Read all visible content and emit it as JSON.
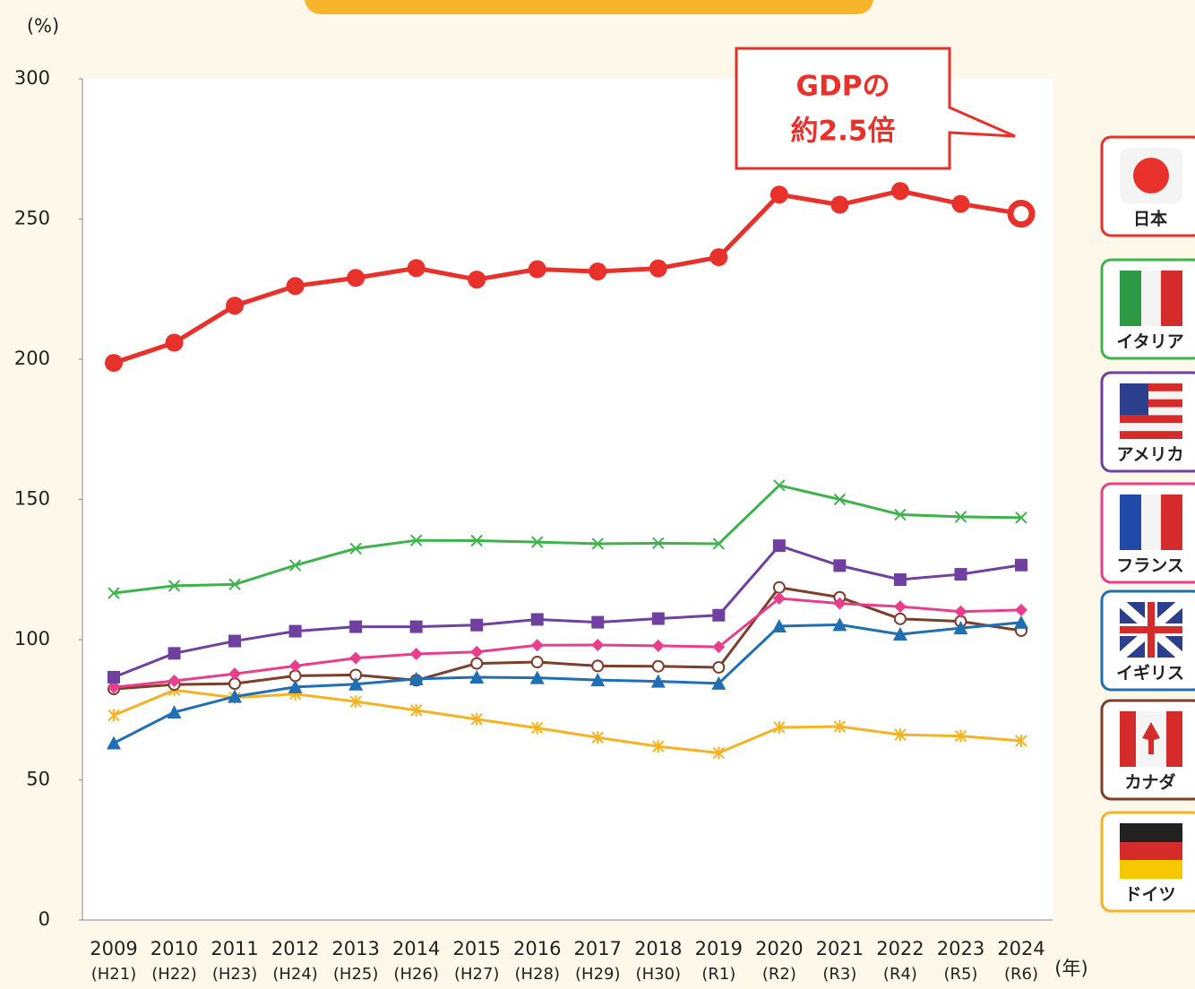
{
  "chart_data": {
    "type": "line",
    "y_axis_label": "(%)",
    "x_axis_label": "(年)",
    "annotation": [
      "GDPの",
      "約2.5倍"
    ],
    "categories": [
      "2009",
      "2010",
      "2011",
      "2012",
      "2013",
      "2014",
      "2015",
      "2016",
      "2017",
      "2018",
      "2019",
      "2020",
      "2021",
      "2022",
      "2023",
      "2024"
    ],
    "era_labels": [
      "(H21)",
      "(H22)",
      "(H23)",
      "(H24)",
      "(H25)",
      "(H26)",
      "(H27)",
      "(H28)",
      "(H29)",
      "(H30)",
      "(R1)",
      "(R2)",
      "(R3)",
      "(R4)",
      "(R5)",
      "(R6)"
    ],
    "ylim": [
      0,
      300
    ],
    "yticks": [
      0,
      50,
      100,
      150,
      200,
      250,
      300
    ],
    "grid": false,
    "series": [
      {
        "name": "日本",
        "color": "#e8312a",
        "marker": "circle",
        "last_marker": "ring",
        "values": [
          198.7,
          205.9,
          219.1,
          226.1,
          229.0,
          232.5,
          228.4,
          232.1,
          231.3,
          232.4,
          236.4,
          258.7,
          255.1,
          260.0,
          255.4,
          251.9
        ]
      },
      {
        "name": "イタリア",
        "color": "#3cb44b",
        "marker": "x",
        "values": [
          116.6,
          119.2,
          119.7,
          126.5,
          132.5,
          135.4,
          135.3,
          134.8,
          134.2,
          134.4,
          134.2,
          155.0,
          150.0,
          144.6,
          143.8,
          143.5
        ]
      },
      {
        "name": "アメリカ",
        "color": "#7040a0",
        "marker": "square",
        "values": [
          86.6,
          95.1,
          99.5,
          103.0,
          104.6,
          104.6,
          105.2,
          107.2,
          106.2,
          107.5,
          108.7,
          133.5,
          126.4,
          121.4,
          123.3,
          126.6
        ]
      },
      {
        "name": "フランス",
        "color": "#e83e8c",
        "marker": "diamond",
        "values": [
          83.0,
          85.3,
          87.8,
          90.6,
          93.4,
          94.9,
          95.6,
          98.0,
          98.1,
          97.8,
          97.4,
          114.7,
          112.9,
          111.8,
          110.0,
          110.6
        ]
      },
      {
        "name": "イギリス",
        "color": "#1f6fb5",
        "marker": "triangle",
        "values": [
          63.1,
          74.1,
          79.7,
          83.1,
          84.1,
          86.0,
          86.6,
          86.4,
          85.6,
          85.1,
          84.4,
          104.8,
          105.3,
          101.9,
          104.1,
          106.1
        ]
      },
      {
        "name": "カナダ",
        "color": "#7b3f2a",
        "marker": "ocircle",
        "values": [
          82.4,
          84.0,
          84.3,
          87.1,
          87.4,
          85.5,
          91.5,
          92.0,
          90.6,
          90.5,
          90.1,
          118.6,
          115.1,
          107.4,
          106.5,
          103.2
        ]
      },
      {
        "name": "ドイツ",
        "color": "#f5b323",
        "marker": "star",
        "values": [
          73.0,
          82.0,
          79.3,
          80.6,
          77.9,
          74.8,
          71.6,
          68.5,
          65.1,
          61.9,
          59.6,
          68.7,
          69.0,
          66.1,
          65.6,
          63.9
        ]
      }
    ]
  }
}
